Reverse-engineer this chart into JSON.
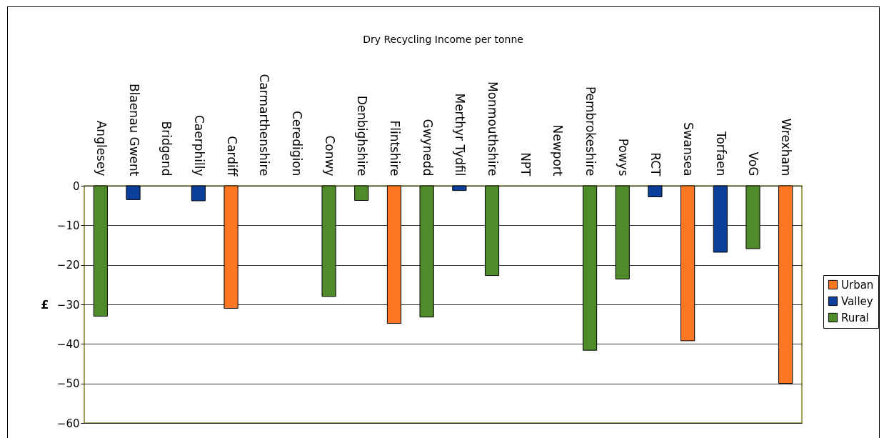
{
  "chart_data": {
    "type": "bar",
    "title": "Dry Recycling Income per tonne",
    "ylabel": "£",
    "categories": [
      "Anglesey",
      "Blaenau Gwent",
      "Bridgend",
      "Caerphilly",
      "Cardiff",
      "Carmarthenshire",
      "Ceredigion",
      "Conwy",
      "Denbighshire",
      "Flintshire",
      "Gwynedd",
      "Merthyr Tydfil",
      "Monmouthshire",
      "NPT",
      "Newport",
      "Pembrokeshire",
      "Powys",
      "RCT",
      "Swansea",
      "Torfaen",
      "VoG",
      "Wrexham"
    ],
    "stacked": true,
    "series": [
      {
        "name": "Urban",
        "color": "#ff7722",
        "values": [
          null,
          null,
          null,
          null,
          -31,
          null,
          null,
          null,
          null,
          -34.8,
          null,
          null,
          null,
          null,
          null,
          null,
          null,
          null,
          -39.2,
          null,
          null,
          -50
        ]
      },
      {
        "name": "Valley",
        "color": "#0b3f9b",
        "values": [
          null,
          -3.5,
          null,
          -3.8,
          null,
          null,
          null,
          null,
          null,
          null,
          null,
          -1.2,
          null,
          null,
          null,
          null,
          null,
          -2.8,
          null,
          -16.8,
          null,
          null
        ]
      },
      {
        "name": "Rural",
        "color": "#4f8a2b",
        "values": [
          -33,
          null,
          null,
          null,
          null,
          null,
          null,
          -28,
          -3.7,
          null,
          -33.2,
          null,
          -22.7,
          null,
          null,
          -41.6,
          -23.6,
          null,
          null,
          null,
          -15.9,
          null
        ]
      }
    ],
    "ylim": [
      -60,
      0
    ],
    "yticks": [
      -60,
      -50,
      -40,
      -30,
      -20,
      -10,
      0
    ],
    "grid": "y",
    "legend": "right"
  }
}
